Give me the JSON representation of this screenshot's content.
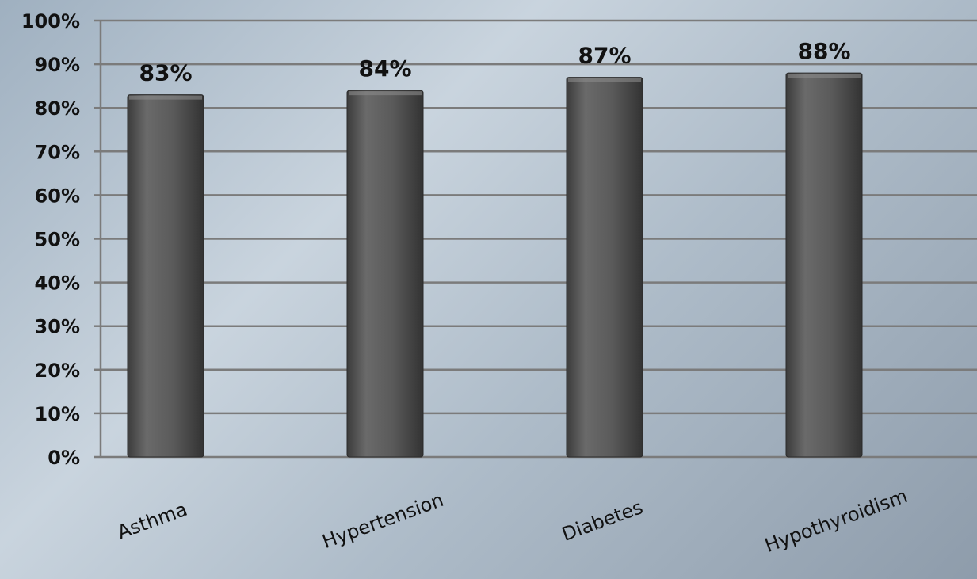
{
  "chart_data": {
    "type": "bar",
    "categories": [
      "Asthma",
      "Hypertension",
      "Diabetes",
      "Hypothyroidism"
    ],
    "values": [
      83,
      84,
      87,
      88
    ],
    "value_labels": [
      "83%",
      "84%",
      "87%",
      "88%"
    ],
    "title": "",
    "xlabel": "",
    "ylabel": "",
    "ylim": [
      0,
      100
    ],
    "yticks": [
      0,
      10,
      20,
      30,
      40,
      50,
      60,
      70,
      80,
      90,
      100
    ],
    "ytick_labels": [
      "0%",
      "10%",
      "20%",
      "30%",
      "40%",
      "50%",
      "60%",
      "70%",
      "80%",
      "90%",
      "100%"
    ],
    "grid": true,
    "legend": "none",
    "colors": {
      "bar": "#5a5a5a",
      "grid": "#7b7b7b",
      "text": "#111111"
    }
  }
}
